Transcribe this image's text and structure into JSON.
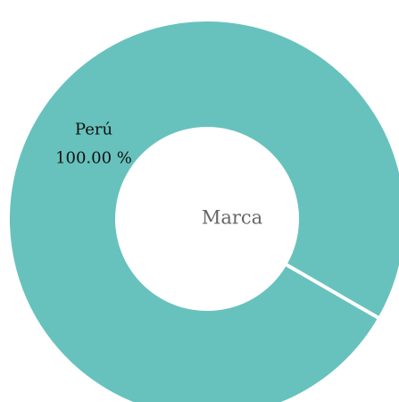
{
  "chart_data": {
    "type": "pie",
    "center_label": "Marca",
    "categories": [
      "Perú"
    ],
    "values": [
      100
    ],
    "value_labels": [
      "100.00 %"
    ],
    "colors": [
      "#67c2bd"
    ]
  }
}
